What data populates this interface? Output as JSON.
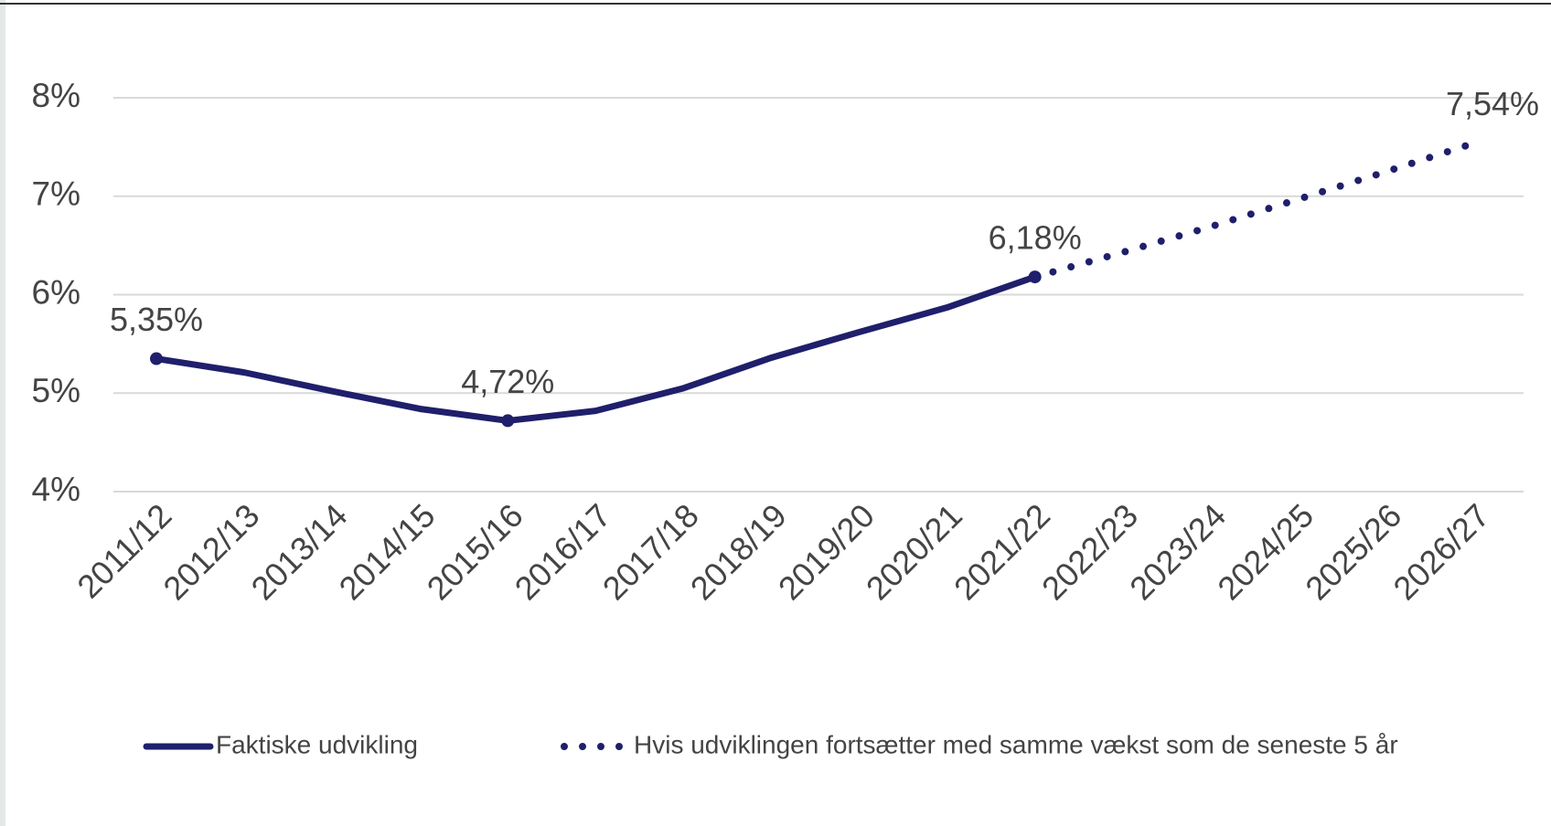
{
  "chart_data": {
    "type": "line",
    "categories": [
      "2011/12",
      "2012/13",
      "2013/14",
      "2014/15",
      "2015/16",
      "2016/17",
      "2017/18",
      "2018/19",
      "2019/20",
      "2020/21",
      "2021/22",
      "2022/23",
      "2023/24",
      "2024/25",
      "2025/26",
      "2026/27"
    ],
    "series": [
      {
        "name": "Faktiske udvikling",
        "color": "#1f1f6b",
        "style": "solid",
        "values": [
          5.35,
          5.21,
          5.02,
          4.84,
          4.72,
          4.82,
          5.05,
          5.36,
          5.62,
          5.87,
          6.18,
          null,
          null,
          null,
          null,
          null
        ],
        "value_labels": [
          "5,35%",
          null,
          null,
          null,
          "4,72%",
          null,
          null,
          null,
          null,
          null,
          "6,18%",
          null,
          null,
          null,
          null,
          null
        ]
      },
      {
        "name": "Hvis udviklingen fortsætter med samme vækst som de seneste 5 år",
        "color": "#1f1f6b",
        "style": "dotted",
        "values": [
          null,
          null,
          null,
          null,
          null,
          null,
          null,
          null,
          null,
          null,
          6.18,
          6.43,
          6.69,
          6.97,
          7.25,
          7.54
        ],
        "value_labels": [
          null,
          null,
          null,
          null,
          null,
          null,
          null,
          null,
          null,
          null,
          null,
          null,
          null,
          null,
          null,
          "7,54%"
        ]
      }
    ],
    "ylim": [
      4,
      8
    ],
    "yticks": [
      {
        "value": 4,
        "label": "4%"
      },
      {
        "value": 5,
        "label": "5%"
      },
      {
        "value": 6,
        "label": "6%"
      },
      {
        "value": 7,
        "label": "7%"
      },
      {
        "value": 8,
        "label": "8%"
      }
    ],
    "grid": true,
    "legend": "bottom"
  }
}
